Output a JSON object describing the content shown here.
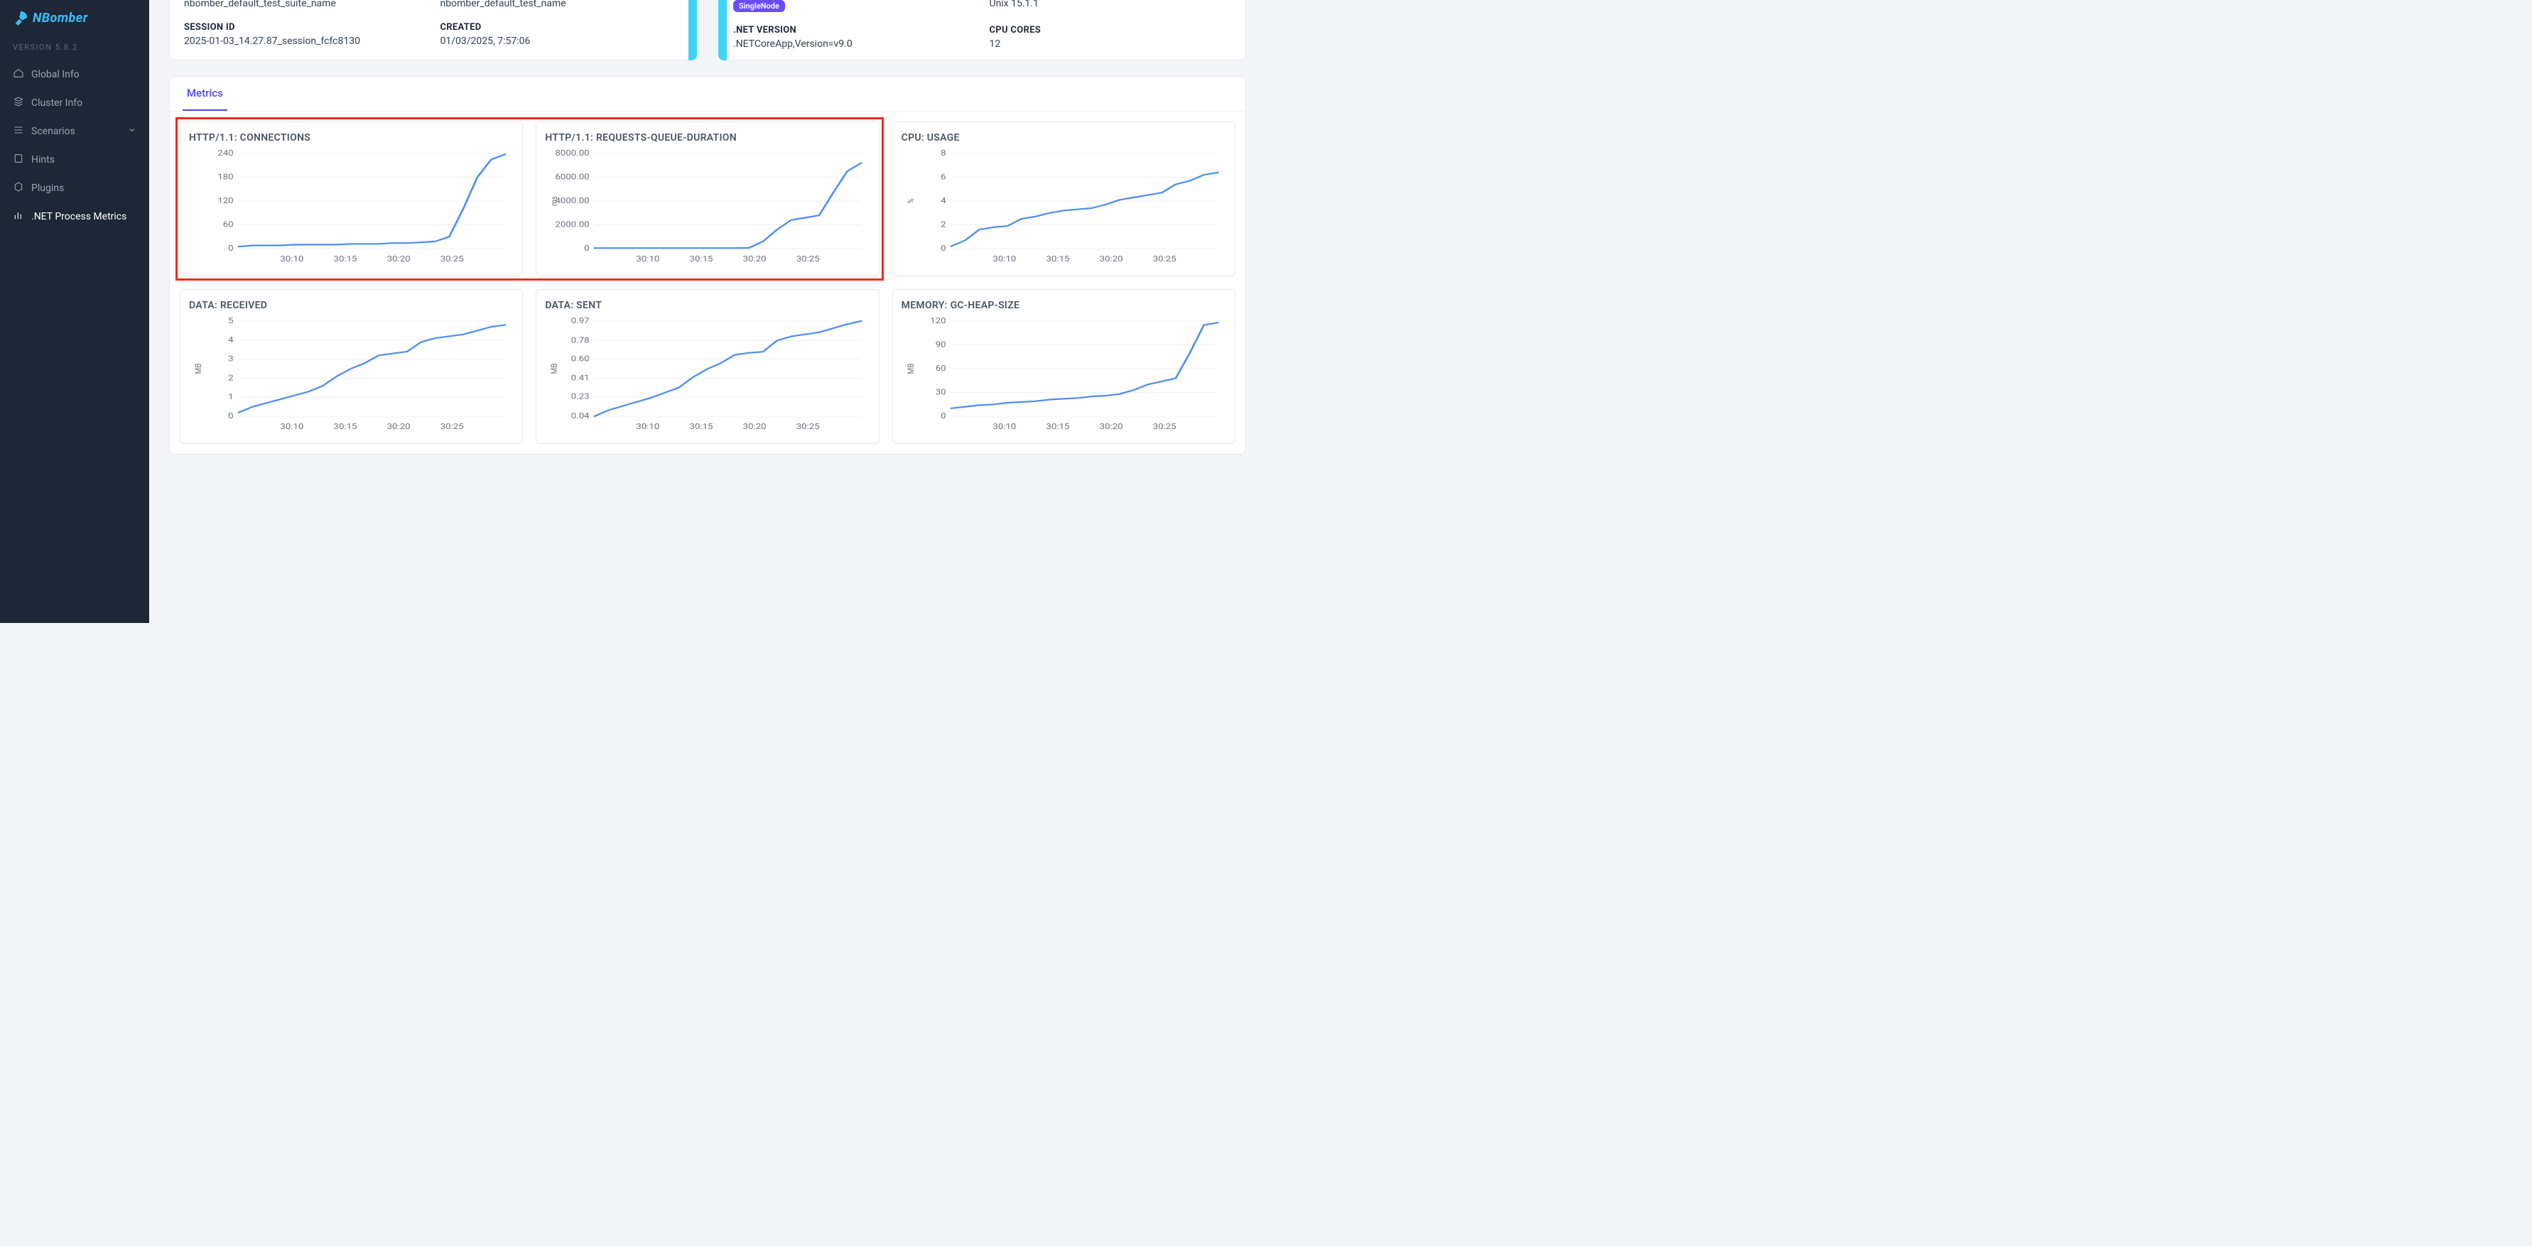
{
  "brand": {
    "name": "NBomber",
    "version": "VERSION 5.8.2"
  },
  "nav": [
    {
      "key": "global-info",
      "label": "Global Info",
      "icon": "home"
    },
    {
      "key": "cluster-info",
      "label": "Cluster Info",
      "icon": "cluster"
    },
    {
      "key": "scenarios",
      "label": "Scenarios",
      "icon": "stack",
      "expandable": true
    },
    {
      "key": "hints",
      "label": "Hints",
      "icon": "book"
    },
    {
      "key": "plugins",
      "label": "Plugins",
      "icon": "hex"
    },
    {
      "key": "dotnet-metrics",
      "label": ".NET Process Metrics",
      "icon": "bars",
      "active": true
    }
  ],
  "info_left": {
    "suite_value": "nbomber_default_test_suite_name",
    "test_value": "nbomber_default_test_name",
    "session_label": "SESSION ID",
    "session_value": "2025-01-03_14.27.87_session_fcfc8130",
    "created_label": "CREATED",
    "created_value": "01/03/2025, 7:57:06"
  },
  "info_right": {
    "badge": "SingleNode",
    "os_value": "Unix 15.1.1",
    "net_label": ".NET VERSION",
    "net_value": ".NETCoreApp,Version=v9.0",
    "cores_label": "CPU CORES",
    "cores_value": "12"
  },
  "tabs": {
    "metrics": "Metrics"
  },
  "x_axis": {
    "labels": [
      "30:10",
      "30:15",
      "30:20",
      "30:25"
    ],
    "count": 20
  },
  "highlight": {
    "col_start": 0,
    "col_end": 2,
    "row": 0
  },
  "colors": {
    "line": "#4c8df6",
    "grid": "#eef0f3",
    "axis_text": "#6b7280",
    "card_border": "#e6e8ec",
    "highlight": "#ef2b18",
    "stripe": "#3ed5f7",
    "tab_active": "#4f46e5",
    "badge_bg": "#6b4bff"
  },
  "charts": [
    {
      "title": "HTTP/1.1: CONNECTIONS",
      "y_unit": "",
      "y_ticks": [
        0,
        60,
        120,
        180,
        240
      ],
      "series": [
        5,
        8,
        8,
        8,
        10,
        10,
        10,
        10,
        12,
        12,
        12,
        14,
        14,
        16,
        18,
        30,
        100,
        180,
        225,
        238
      ]
    },
    {
      "title": "HTTP/1.1: REQUESTS-QUEUE-DURATION",
      "y_unit": "ms",
      "y_ticks": [
        0,
        2000,
        4000,
        6000,
        8000
      ],
      "series": [
        50,
        50,
        50,
        50,
        50,
        50,
        50,
        50,
        50,
        50,
        50,
        60,
        600,
        1600,
        2400,
        2600,
        2800,
        4700,
        6500,
        7200
      ]
    },
    {
      "title": "CPU: USAGE",
      "y_unit": "%",
      "y_ticks": [
        0,
        2,
        4,
        6,
        8
      ],
      "series": [
        0.2,
        0.7,
        1.6,
        1.8,
        1.9,
        2.5,
        2.7,
        3.0,
        3.2,
        3.3,
        3.4,
        3.7,
        4.1,
        4.3,
        4.5,
        4.7,
        5.4,
        5.7,
        6.2,
        6.4
      ]
    },
    {
      "title": "DATA: RECEIVED",
      "y_unit": "MB",
      "y_ticks": [
        0,
        1,
        2,
        3,
        4,
        5
      ],
      "series": [
        0.2,
        0.5,
        0.7,
        0.9,
        1.1,
        1.3,
        1.6,
        2.1,
        2.5,
        2.8,
        3.2,
        3.3,
        3.4,
        3.9,
        4.1,
        4.2,
        4.3,
        4.5,
        4.7,
        4.8
      ]
    },
    {
      "title": "DATA: SENT",
      "y_unit": "MB",
      "y_ticks": [
        0.04,
        0.23,
        0.41,
        0.6,
        0.78,
        0.97
      ],
      "series": [
        0.04,
        0.1,
        0.14,
        0.18,
        0.22,
        0.27,
        0.32,
        0.42,
        0.5,
        0.56,
        0.64,
        0.66,
        0.67,
        0.78,
        0.82,
        0.84,
        0.86,
        0.9,
        0.94,
        0.97
      ]
    },
    {
      "title": "MEMORY: GC-HEAP-SIZE",
      "y_unit": "MB",
      "y_ticks": [
        0,
        30,
        60,
        90,
        120
      ],
      "series": [
        10,
        12,
        14,
        15,
        17,
        18,
        19,
        21,
        22,
        23,
        25,
        26,
        28,
        33,
        40,
        44,
        48,
        80,
        115,
        118
      ]
    }
  ]
}
